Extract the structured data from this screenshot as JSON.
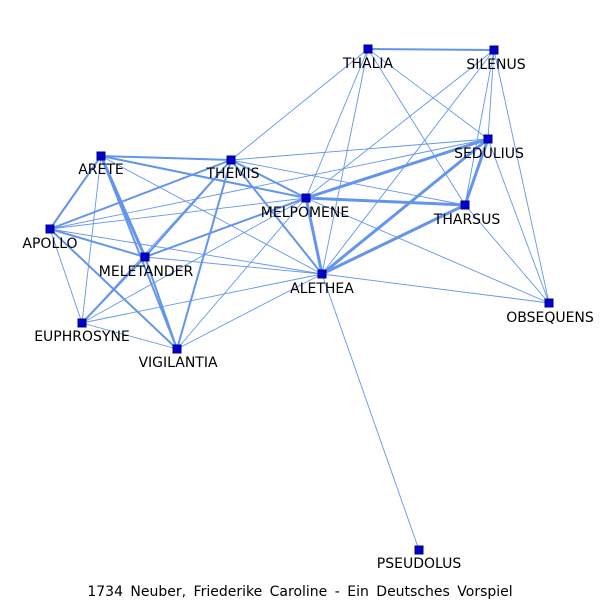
{
  "caption": "1734 Neuber, Friederike Caroline - Ein Deutsches Vorspiel",
  "colors": {
    "edge": "#6495ed",
    "node_fill": "#0000cd",
    "node_stroke": "#00008b",
    "text": "#000000"
  },
  "nodes": [
    {
      "id": "THALIA",
      "label": "THALIA"
    },
    {
      "id": "SILENUS",
      "label": "SILENUS"
    },
    {
      "id": "SEDULIUS",
      "label": "SEDULIUS"
    },
    {
      "id": "ARETE",
      "label": "ARETE"
    },
    {
      "id": "THEMIS",
      "label": "THEMIS"
    },
    {
      "id": "MELPOMENE",
      "label": "MELPOMENE"
    },
    {
      "id": "THARSUS",
      "label": "THARSUS"
    },
    {
      "id": "APOLLO",
      "label": "APOLLO"
    },
    {
      "id": "MELETANDER",
      "label": "MELETANDER"
    },
    {
      "id": "ALETHEA",
      "label": "ALETHEA"
    },
    {
      "id": "OBSEQUENS",
      "label": "OBSEQUENS"
    },
    {
      "id": "EUPHROSYNE",
      "label": "EUPHROSYNE"
    },
    {
      "id": "VIGILANTIA",
      "label": "VIGILANTIA"
    },
    {
      "id": "PSEUDOLUS",
      "label": "PSEUDOLUS"
    }
  ],
  "edges": [
    {
      "source": "THALIA",
      "target": "SILENUS",
      "weight": 2
    },
    {
      "source": "THALIA",
      "target": "THEMIS",
      "weight": 1
    },
    {
      "source": "THALIA",
      "target": "MELPOMENE",
      "weight": 1
    },
    {
      "source": "THALIA",
      "target": "ALETHEA",
      "weight": 1
    },
    {
      "source": "THALIA",
      "target": "SEDULIUS",
      "weight": 1
    },
    {
      "source": "THALIA",
      "target": "THARSUS",
      "weight": 1
    },
    {
      "source": "SILENUS",
      "target": "SEDULIUS",
      "weight": 1
    },
    {
      "source": "SILENUS",
      "target": "THARSUS",
      "weight": 1
    },
    {
      "source": "SILENUS",
      "target": "MELPOMENE",
      "weight": 1
    },
    {
      "source": "SILENUS",
      "target": "ALETHEA",
      "weight": 1
    },
    {
      "source": "SILENUS",
      "target": "OBSEQUENS",
      "weight": 1
    },
    {
      "source": "SEDULIUS",
      "target": "THARSUS",
      "weight": 3
    },
    {
      "source": "SEDULIUS",
      "target": "MELPOMENE",
      "weight": 3
    },
    {
      "source": "SEDULIUS",
      "target": "ALETHEA",
      "weight": 3
    },
    {
      "source": "SEDULIUS",
      "target": "THEMIS",
      "weight": 1
    },
    {
      "source": "SEDULIUS",
      "target": "OBSEQUENS",
      "weight": 1
    },
    {
      "source": "SEDULIUS",
      "target": "APOLLO",
      "weight": 1
    },
    {
      "source": "ARETE",
      "target": "THEMIS",
      "weight": 2
    },
    {
      "source": "ARETE",
      "target": "MELPOMENE",
      "weight": 2
    },
    {
      "source": "ARETE",
      "target": "APOLLO",
      "weight": 2
    },
    {
      "source": "ARETE",
      "target": "MELETANDER",
      "weight": 3
    },
    {
      "source": "ARETE",
      "target": "VIGILANTIA",
      "weight": 2
    },
    {
      "source": "ARETE",
      "target": "EUPHROSYNE",
      "weight": 1
    },
    {
      "source": "ARETE",
      "target": "ALETHEA",
      "weight": 1
    },
    {
      "source": "THEMIS",
      "target": "MELPOMENE",
      "weight": 2
    },
    {
      "source": "THEMIS",
      "target": "ALETHEA",
      "weight": 2
    },
    {
      "source": "THEMIS",
      "target": "APOLLO",
      "weight": 2
    },
    {
      "source": "THEMIS",
      "target": "MELETANDER",
      "weight": 2
    },
    {
      "source": "THEMIS",
      "target": "VIGILANTIA",
      "weight": 2
    },
    {
      "source": "THEMIS",
      "target": "THARSUS",
      "weight": 1
    },
    {
      "source": "THEMIS",
      "target": "EUPHROSYNE",
      "weight": 1
    },
    {
      "source": "MELPOMENE",
      "target": "THARSUS",
      "weight": 3
    },
    {
      "source": "MELPOMENE",
      "target": "ALETHEA",
      "weight": 3
    },
    {
      "source": "MELPOMENE",
      "target": "MELETANDER",
      "weight": 2
    },
    {
      "source": "MELPOMENE",
      "target": "APOLLO",
      "weight": 1
    },
    {
      "source": "MELPOMENE",
      "target": "VIGILANTIA",
      "weight": 1
    },
    {
      "source": "MELPOMENE",
      "target": "EUPHROSYNE",
      "weight": 1
    },
    {
      "source": "MELPOMENE",
      "target": "OBSEQUENS",
      "weight": 1
    },
    {
      "source": "THARSUS",
      "target": "ALETHEA",
      "weight": 3
    },
    {
      "source": "THARSUS",
      "target": "OBSEQUENS",
      "weight": 1
    },
    {
      "source": "APOLLO",
      "target": "MELETANDER",
      "weight": 2
    },
    {
      "source": "APOLLO",
      "target": "VIGILANTIA",
      "weight": 2
    },
    {
      "source": "APOLLO",
      "target": "EUPHROSYNE",
      "weight": 1
    },
    {
      "source": "APOLLO",
      "target": "ALETHEA",
      "weight": 1
    },
    {
      "source": "MELETANDER",
      "target": "VIGILANTIA",
      "weight": 2
    },
    {
      "source": "MELETANDER",
      "target": "EUPHROSYNE",
      "weight": 2
    },
    {
      "source": "MELETANDER",
      "target": "ALETHEA",
      "weight": 1
    },
    {
      "source": "ALETHEA",
      "target": "OBSEQUENS",
      "weight": 1
    },
    {
      "source": "ALETHEA",
      "target": "EUPHROSYNE",
      "weight": 1
    },
    {
      "source": "ALETHEA",
      "target": "VIGILANTIA",
      "weight": 1
    },
    {
      "source": "ALETHEA",
      "target": "PSEUDOLUS",
      "weight": 1
    },
    {
      "source": "EUPHROSYNE",
      "target": "VIGILANTIA",
      "weight": 1
    }
  ]
}
